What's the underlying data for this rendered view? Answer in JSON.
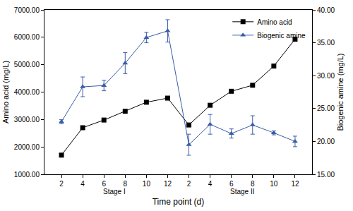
{
  "chart_data": {
    "type": "line",
    "x_label": "Time point (d)",
    "y_label": "Amino acid (mg/L)",
    "y2_label": "Biogenic amine (mg/L)",
    "categories": [
      "2",
      "4",
      "6",
      "8",
      "10",
      "12",
      "2",
      "4",
      "6",
      "8",
      "10",
      "12"
    ],
    "stages": [
      "Stage I",
      "Stage I",
      "Stage I",
      "Stage I",
      "Stage I",
      "Stage I",
      "Stage II",
      "Stage II",
      "Stage II",
      "Stage II",
      "Stage II",
      "Stage II"
    ],
    "series": [
      {
        "name": "Amino acid",
        "color": "#000000",
        "marker": "square",
        "line_style": "solid",
        "values": [
          1700,
          2700,
          2980,
          3300,
          3630,
          3780,
          2800,
          3520,
          4030,
          4250,
          4950,
          5930
        ]
      },
      {
        "name": "Biogenic amine",
        "color": "#3a5ca8",
        "marker": "triangle-up",
        "line_style": "solid",
        "axis": "y2",
        "values": [
          23.0,
          28.3,
          28.5,
          31.9,
          35.8,
          36.8,
          19.5,
          22.6,
          21.2,
          22.5,
          21.3,
          20.0
        ],
        "error": [
          0.3,
          1.5,
          0.8,
          1.6,
          0.8,
          1.7,
          1.6,
          1.5,
          0.7,
          1.4,
          0.3,
          0.8
        ]
      }
    ],
    "ylim": [
      1000,
      7000
    ],
    "yticks": [
      {
        "value": 1000,
        "label": "1000.00"
      },
      {
        "value": 2000,
        "label": "2000.00"
      },
      {
        "value": 3000,
        "label": "3000.00"
      },
      {
        "value": 4000,
        "label": "4000.00"
      },
      {
        "value": 5000,
        "label": "5000.00"
      },
      {
        "value": 6000,
        "label": "6000.00"
      },
      {
        "value": 7000,
        "label": "7000.00"
      }
    ],
    "y2lim": [
      15,
      40
    ],
    "y2ticks": [
      {
        "value": 15,
        "label": "15.00"
      },
      {
        "value": 20,
        "label": "20.00"
      },
      {
        "value": 25,
        "label": "25.00"
      },
      {
        "value": 30,
        "label": "30.00"
      },
      {
        "value": 35,
        "label": "35.00"
      },
      {
        "value": 40,
        "label": "40.00"
      }
    ],
    "legend": "upper right",
    "grid": false
  }
}
